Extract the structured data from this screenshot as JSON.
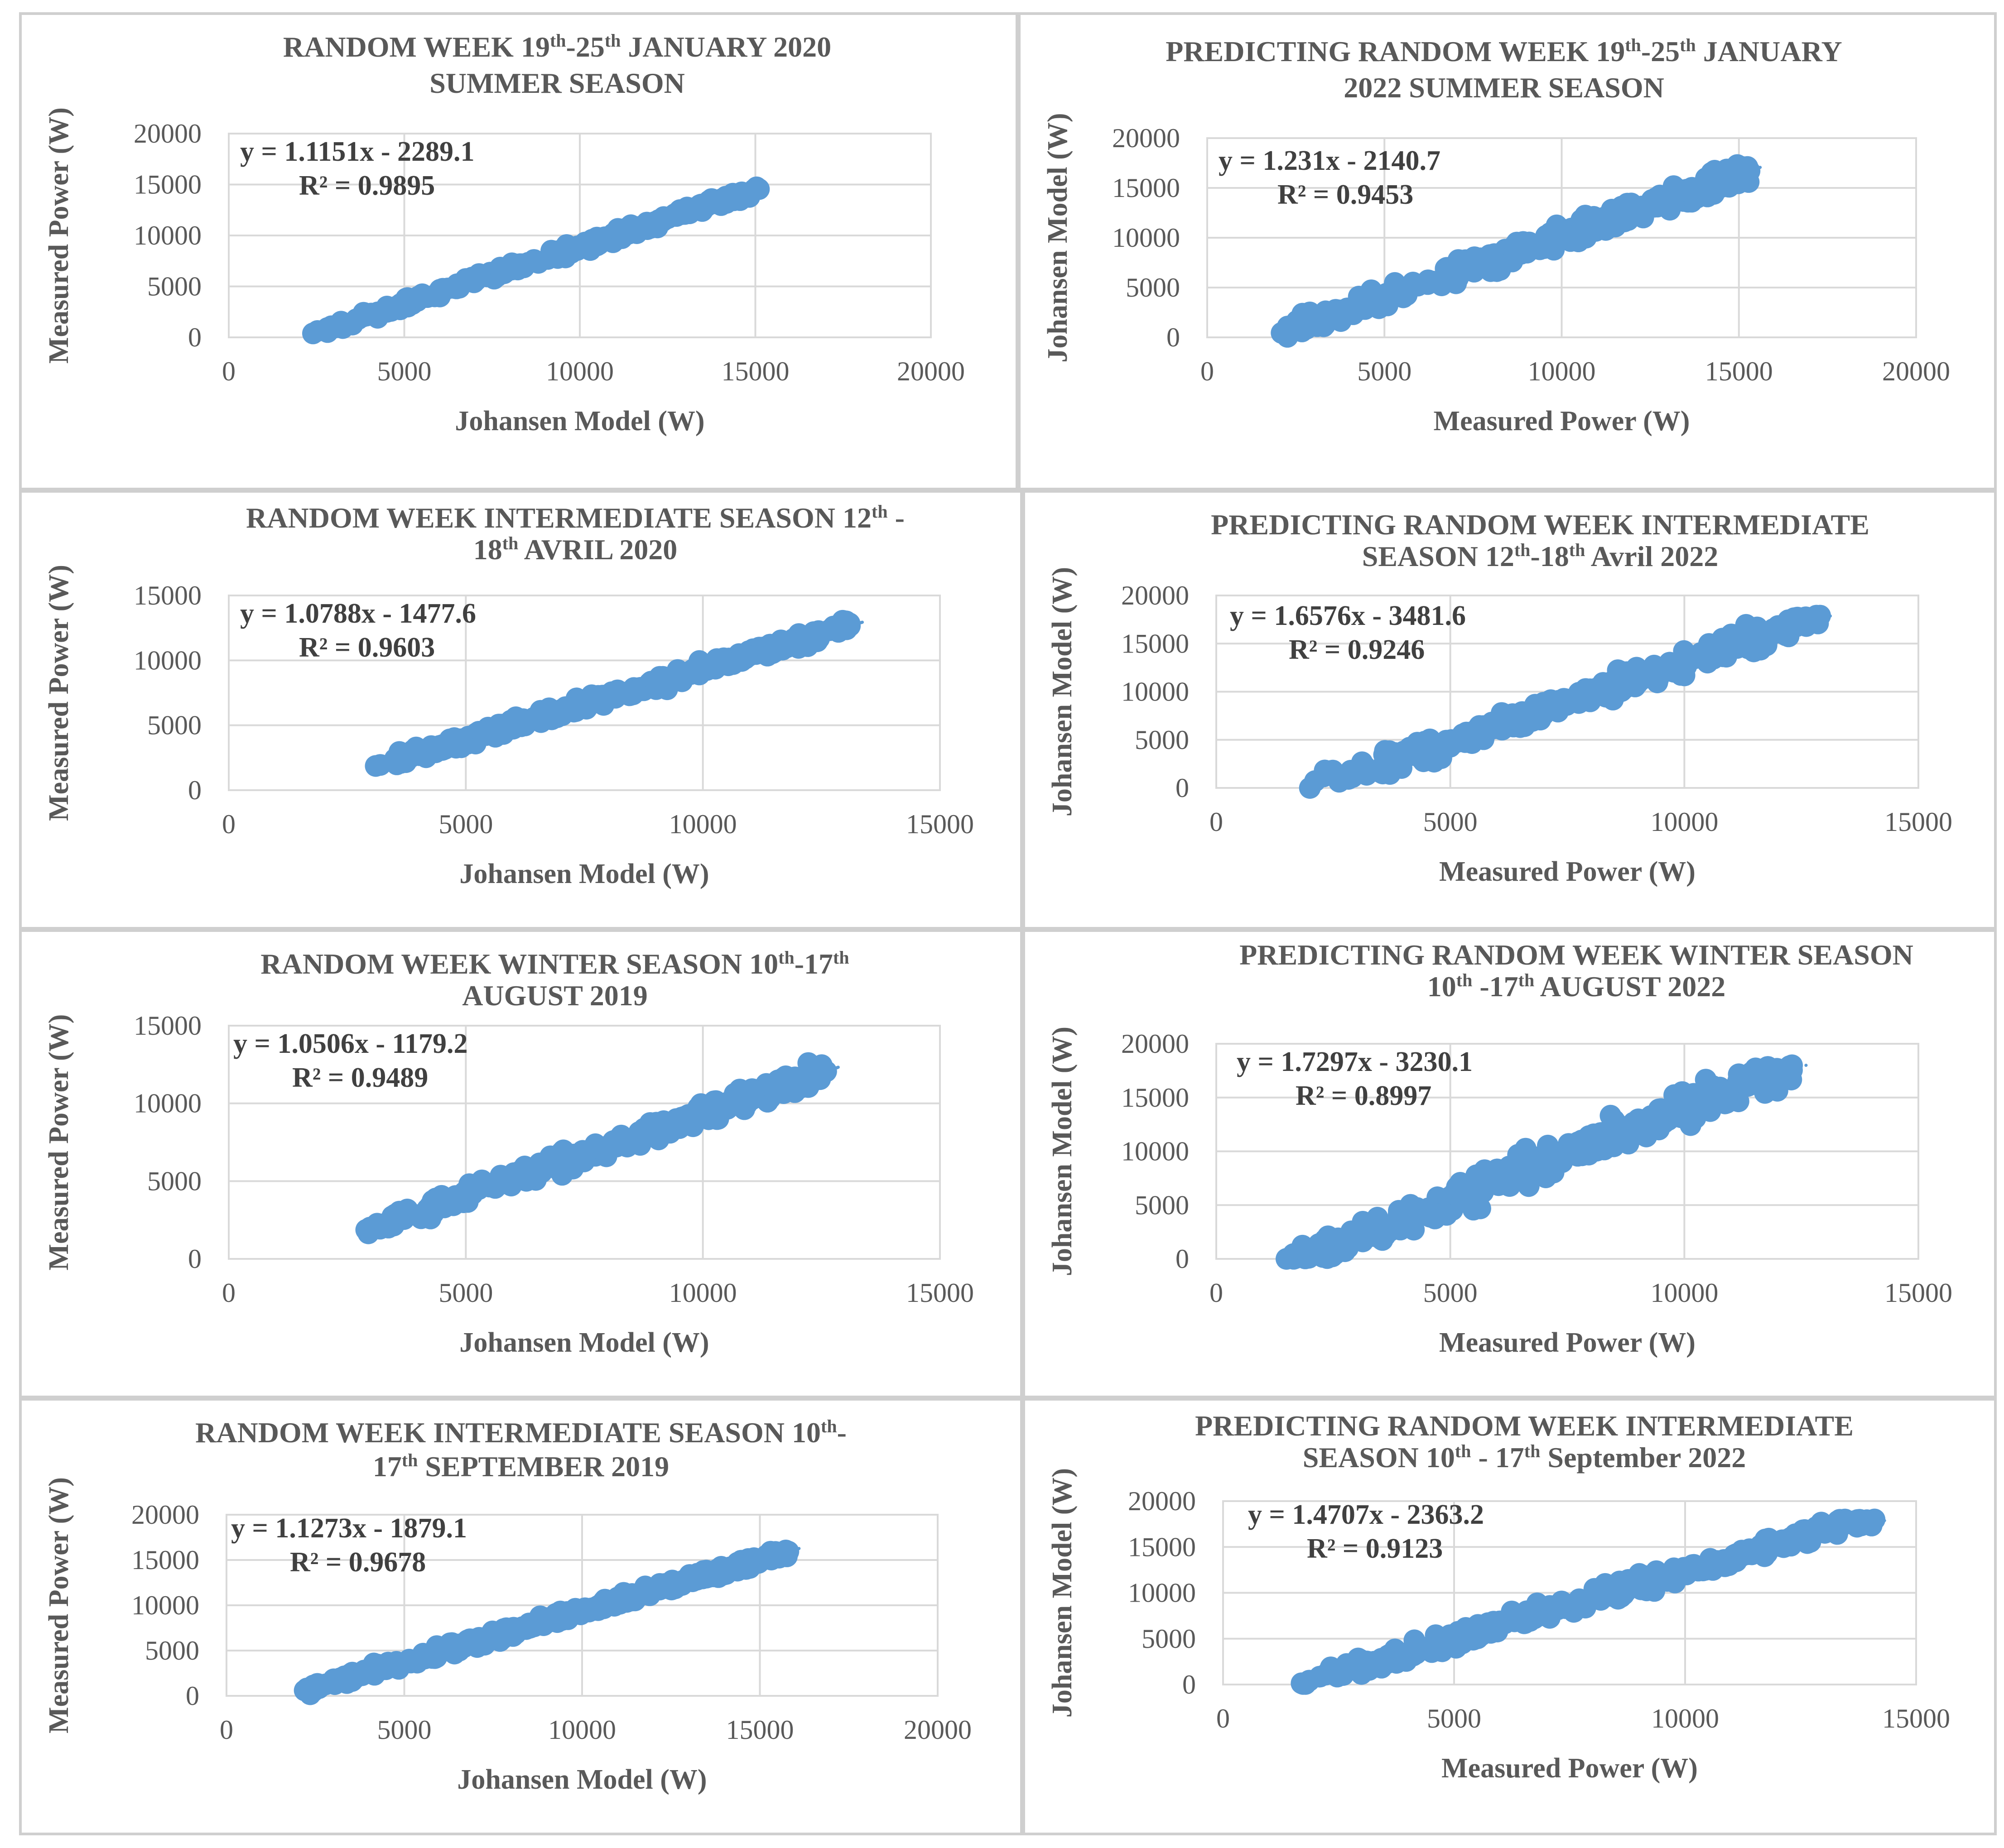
{
  "colors": {
    "marker": "#5b9bd5",
    "grid": "#d9d9d9",
    "text": "#595959",
    "equation": "#404040"
  },
  "chart_data": [
    {
      "type": "scatter",
      "id": "chart-1",
      "title_lines": [
        [
          {
            "t": "RANDOM WEEK 19"
          },
          {
            "t": "th",
            "sup": true
          },
          {
            "t": "-25"
          },
          {
            "t": "th",
            "sup": true
          },
          {
            "t": " JANUARY 2020"
          }
        ],
        [
          {
            "t": "SUMMER SEASON"
          }
        ]
      ],
      "xlabel": "Johansen Model (W)",
      "ylabel": "Measured Power  (W)",
      "xlim": [
        0,
        20000
      ],
      "ylim": [
        0,
        20000
      ],
      "xticks": [
        0,
        5000,
        10000,
        15000,
        20000
      ],
      "yticks": [
        0,
        5000,
        10000,
        15000,
        20000
      ],
      "equation": "y = 1.1151x - 2289.1",
      "r2": "R² = 0.9895",
      "slope": 1.1151,
      "intercept": -2289.1,
      "x_range": [
        2400,
        15100
      ],
      "noise": 450,
      "n_points": 230
    },
    {
      "type": "scatter",
      "id": "chart-2",
      "title_lines": [
        [
          {
            "t": "PREDICTING RANDOM WEEK 19"
          },
          {
            "t": "th",
            "sup": true
          },
          {
            "t": "-25"
          },
          {
            "t": "th",
            "sup": true
          },
          {
            "t": " JANUARY"
          }
        ],
        [
          {
            "t": "2022  SUMMER SEASON"
          }
        ]
      ],
      "xlabel": "Measured Power (W)",
      "ylabel": "Johansen Model (W)",
      "xlim": [
        0,
        20000
      ],
      "ylim": [
        0,
        20000
      ],
      "xticks": [
        0,
        5000,
        10000,
        15000,
        20000
      ],
      "yticks": [
        0,
        5000,
        10000,
        15000,
        20000
      ],
      "equation": "y = 1.231x - 2140.7",
      "r2": "R² = 0.9453",
      "slope": 1.231,
      "intercept": -2140.7,
      "x_range": [
        2100,
        15300
      ],
      "noise": 1000,
      "n_points": 330
    },
    {
      "type": "scatter",
      "id": "chart-3",
      "title_lines": [
        [
          {
            "t": "RANDOM WEEK INTERMEDIATE SEASON 12"
          },
          {
            "t": "th",
            "sup": true
          },
          {
            "t": " -"
          }
        ],
        [
          {
            "t": "18"
          },
          {
            "t": "th",
            "sup": true
          },
          {
            "t": "  AVRIL 2020"
          }
        ]
      ],
      "xlabel": "Johansen Model (W)",
      "ylabel": "Measured Power (W)",
      "xlim": [
        0,
        15000
      ],
      "ylim": [
        0,
        15000
      ],
      "xticks": [
        0,
        5000,
        10000,
        15000
      ],
      "yticks": [
        0,
        5000,
        10000,
        15000
      ],
      "equation": "y = 1.0788x - 1477.6",
      "r2": "R² = 0.9603",
      "slope": 1.0788,
      "intercept": -1477.6,
      "x_range": [
        3100,
        13100
      ],
      "noise": 500,
      "n_points": 280
    },
    {
      "type": "scatter",
      "id": "chart-4",
      "title_lines": [
        [
          {
            "t": "PREDICTING RANDOM WEEK INTERMEDIATE"
          }
        ],
        [
          {
            "t": "SEASON 12"
          },
          {
            "t": "th",
            "sup": true
          },
          {
            "t": "-18"
          },
          {
            "t": "th",
            "sup": true
          },
          {
            "t": " Avril 2022"
          }
        ]
      ],
      "xlabel": "Measured Power  (W)",
      "ylabel": "Johansen Model (W)",
      "xlim": [
        0,
        15000
      ],
      "ylim": [
        0,
        20000
      ],
      "xticks": [
        0,
        5000,
        10000,
        15000
      ],
      "yticks": [
        0,
        5000,
        10000,
        15000,
        20000
      ],
      "equation": "y = 1.6576x - 3481.6",
      "r2": "R² = 0.9246",
      "slope": 1.6576,
      "intercept": -3481.6,
      "x_range": [
        2000,
        12900
      ],
      "noise": 1100,
      "n_points": 300
    },
    {
      "type": "scatter",
      "id": "chart-5",
      "title_lines": [
        [
          {
            "t": "RANDOM WEEK WINTER SEASON 10"
          },
          {
            "t": "th",
            "sup": true
          },
          {
            "t": "-17"
          },
          {
            "t": "th",
            "sup": true
          }
        ],
        [
          {
            "t": "AUGUST 2019"
          }
        ]
      ],
      "xlabel": "Johansen Model (W)",
      "ylabel": "Measured Power (W)",
      "xlim": [
        0,
        15000
      ],
      "ylim": [
        0,
        15000
      ],
      "xticks": [
        0,
        5000,
        10000,
        15000
      ],
      "yticks": [
        0,
        5000,
        10000,
        15000
      ],
      "equation": "y = 1.0506x - 1179.2",
      "r2": "R² = 0.9489",
      "slope": 1.0506,
      "intercept": -1179.2,
      "x_range": [
        2900,
        12600
      ],
      "noise": 600,
      "n_points": 280
    },
    {
      "type": "scatter",
      "id": "chart-6",
      "title_lines": [
        [
          {
            "t": "PREDICTING RANDOM WEEK WINTER SEASON"
          }
        ],
        [
          {
            "t": "10"
          },
          {
            "t": "th",
            "sup": true
          },
          {
            "t": " -17"
          },
          {
            "t": "th",
            "sup": true
          },
          {
            "t": " AUGUST 2022"
          }
        ]
      ],
      "xlabel": "Measured Power (W)",
      "ylabel": "Johansen Model (W)",
      "xlim": [
        0,
        15000
      ],
      "ylim": [
        0,
        20000
      ],
      "xticks": [
        0,
        5000,
        10000,
        15000
      ],
      "yticks": [
        0,
        5000,
        10000,
        15000,
        20000
      ],
      "equation": "y = 1.7297x - 3230.1",
      "r2": "R² = 0.8997",
      "slope": 1.7297,
      "intercept": -3230.1,
      "x_range": [
        1500,
        12300
      ],
      "noise": 1300,
      "n_points": 300
    },
    {
      "type": "scatter",
      "id": "chart-7",
      "title_lines": [
        [
          {
            "t": "RANDOM WEEK INTERMEDIATE SEASON 10"
          },
          {
            "t": "th",
            "sup": true
          },
          {
            "t": "-"
          }
        ],
        [
          {
            "t": "17"
          },
          {
            "t": "th",
            "sup": true
          },
          {
            "t": " SEPTEMBER 2019"
          }
        ]
      ],
      "xlabel": "Johansen Model (W)",
      "ylabel": "Measured Power (W)",
      "xlim": [
        0,
        20000
      ],
      "ylim": [
        0,
        20000
      ],
      "xticks": [
        0,
        5000,
        10000,
        15000,
        20000
      ],
      "yticks": [
        0,
        5000,
        10000,
        15000,
        20000
      ],
      "equation": "y = 1.1273x - 1879.1",
      "r2": "R² = 0.9678",
      "slope": 1.1273,
      "intercept": -1879.1,
      "x_range": [
        2200,
        15800
      ],
      "noise": 550,
      "n_points": 280
    },
    {
      "type": "scatter",
      "id": "chart-8",
      "title_lines": [
        [
          {
            "t": "PREDICTING RANDOM WEEK INTERMEDIATE"
          }
        ],
        [
          {
            "t": "SEASON 10"
          },
          {
            "t": "th",
            "sup": true
          },
          {
            "t": " - 17"
          },
          {
            "t": "th",
            "sup": true
          },
          {
            "t": "  September 2022"
          }
        ]
      ],
      "xlabel": "Measured Power (W)",
      "ylabel": "Johansen Model (W)",
      "xlim": [
        0,
        15000
      ],
      "ylim": [
        0,
        20000
      ],
      "xticks": [
        0,
        5000,
        10000,
        15000
      ],
      "yticks": [
        0,
        5000,
        10000,
        15000,
        20000
      ],
      "equation": "y = 1.4707x - 2363.2",
      "r2": "R² = 0.9123",
      "slope": 1.4707,
      "intercept": -2363.2,
      "x_range": [
        1700,
        14100
      ],
      "noise": 900,
      "n_points": 320
    }
  ]
}
